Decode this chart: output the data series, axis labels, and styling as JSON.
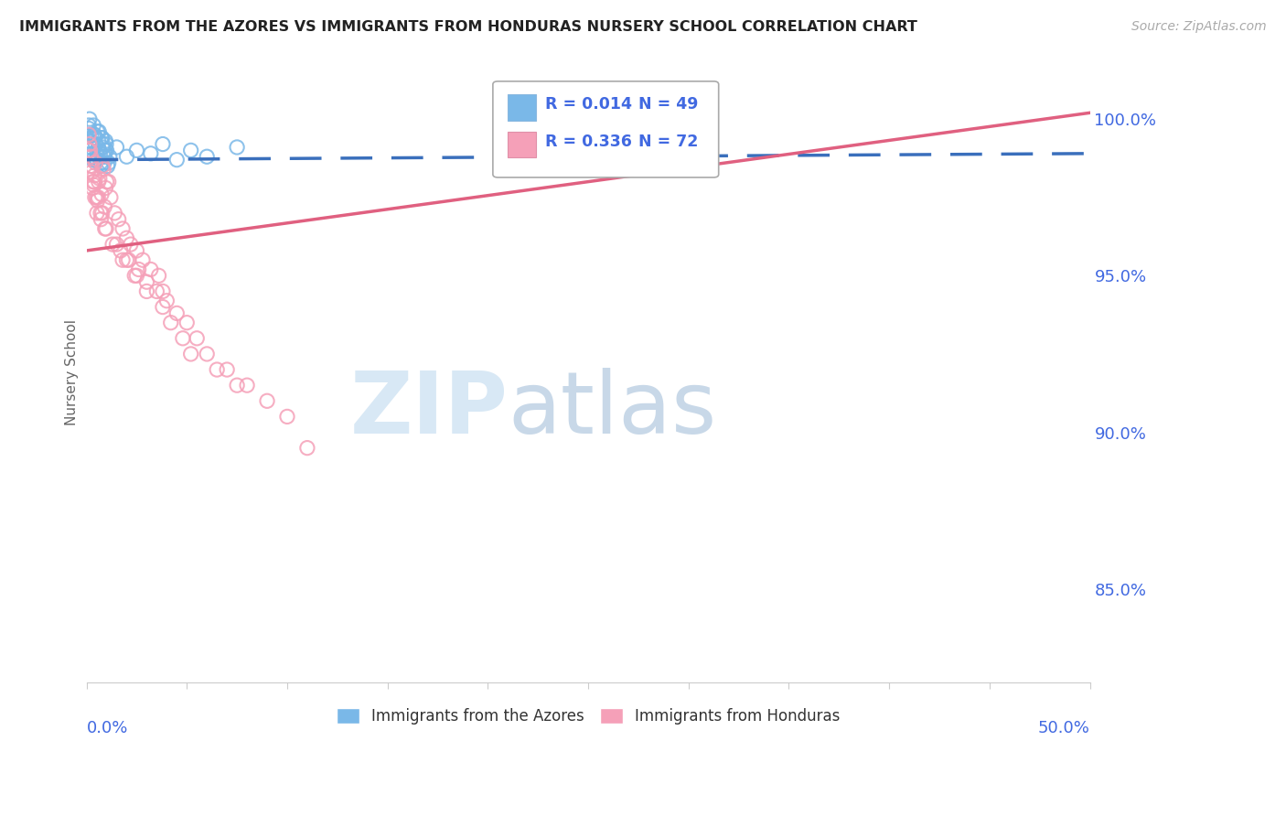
{
  "title": "IMMIGRANTS FROM THE AZORES VS IMMIGRANTS FROM HONDURAS NURSERY SCHOOL CORRELATION CHART",
  "source": "Source: ZipAtlas.com",
  "ylabel": "Nursery School",
  "ytick_values": [
    85.0,
    90.0,
    95.0,
    100.0
  ],
  "xlim": [
    0.0,
    50.0
  ],
  "ylim": [
    82.0,
    101.8
  ],
  "legend_r1": "R = 0.014",
  "legend_n1": "N = 49",
  "legend_r2": "R = 0.336",
  "legend_n2": "N = 72",
  "color_azores": "#7ab8e8",
  "color_honduras": "#f5a0b8",
  "color_azores_line": "#3a6fbc",
  "color_honduras_line": "#e06080",
  "color_axis_labels": "#4169e1",
  "color_title": "#222222",
  "color_source": "#aaaaaa",
  "color_grid": "#cccccc",
  "watermark_zip": "ZIP",
  "watermark_atlas": "atlas",
  "watermark_color_zip": "#d8e8f5",
  "watermark_color_atlas": "#c8d8e8",
  "azores_line_x": [
    0.0,
    50.0
  ],
  "azores_line_y": [
    98.7,
    98.9
  ],
  "honduras_line_x": [
    0.0,
    50.0
  ],
  "honduras_line_y": [
    95.8,
    100.2
  ],
  "azores_x": [
    0.15,
    0.25,
    0.35,
    0.45,
    0.55,
    0.65,
    0.75,
    0.85,
    0.95,
    1.05,
    0.1,
    0.2,
    0.3,
    0.4,
    0.5,
    0.6,
    0.7,
    0.8,
    0.9,
    1.0,
    0.12,
    0.22,
    0.32,
    0.42,
    0.52,
    0.62,
    0.72,
    0.82,
    0.92,
    1.1,
    0.18,
    0.28,
    0.38,
    0.48,
    0.58,
    0.68,
    0.78,
    0.88,
    0.98,
    1.15,
    1.5,
    2.0,
    2.5,
    3.2,
    3.8,
    4.5,
    5.2,
    6.0,
    7.5
  ],
  "azores_y": [
    100.0,
    99.5,
    99.8,
    99.2,
    99.6,
    99.0,
    99.4,
    98.8,
    99.3,
    98.5,
    99.7,
    99.1,
    98.9,
    99.5,
    98.7,
    99.3,
    98.6,
    99.1,
    98.8,
    99.0,
    99.8,
    99.2,
    98.7,
    99.4,
    98.9,
    99.6,
    98.5,
    99.2,
    99.0,
    98.6,
    99.3,
    98.8,
    99.5,
    98.7,
    99.1,
    98.9,
    99.4,
    98.6,
    99.2,
    98.8,
    99.1,
    98.8,
    99.0,
    98.9,
    99.2,
    98.7,
    99.0,
    98.8,
    99.1
  ],
  "honduras_x": [
    0.1,
    0.2,
    0.3,
    0.4,
    0.5,
    0.6,
    0.7,
    0.8,
    0.9,
    1.0,
    0.15,
    0.25,
    0.35,
    0.45,
    0.55,
    0.65,
    0.75,
    0.85,
    0.95,
    1.1,
    1.2,
    1.4,
    1.6,
    1.8,
    2.0,
    2.2,
    2.5,
    2.8,
    3.2,
    3.6,
    0.12,
    0.22,
    0.32,
    0.42,
    0.52,
    0.72,
    0.92,
    1.3,
    1.7,
    2.1,
    2.6,
    3.0,
    3.5,
    4.0,
    4.5,
    5.0,
    5.5,
    6.0,
    7.0,
    8.0,
    0.18,
    0.28,
    0.38,
    0.58,
    0.78,
    0.98,
    1.5,
    2.0,
    2.5,
    3.8,
    1.8,
    2.4,
    3.0,
    3.8,
    4.2,
    4.8,
    5.2,
    6.5,
    7.5,
    9.0,
    10.0,
    11.0
  ],
  "honduras_y": [
    99.0,
    98.5,
    97.8,
    98.2,
    97.5,
    98.0,
    97.0,
    98.5,
    97.2,
    98.0,
    99.2,
    98.3,
    97.9,
    98.6,
    97.4,
    98.1,
    97.6,
    98.4,
    97.8,
    98.0,
    97.5,
    97.0,
    96.8,
    96.5,
    96.2,
    96.0,
    95.8,
    95.5,
    95.2,
    95.0,
    99.5,
    98.8,
    98.0,
    97.5,
    97.0,
    96.8,
    96.5,
    96.0,
    95.8,
    95.5,
    95.2,
    94.8,
    94.5,
    94.2,
    93.8,
    93.5,
    93.0,
    92.5,
    92.0,
    91.5,
    99.0,
    98.5,
    98.0,
    97.5,
    97.0,
    96.5,
    96.0,
    95.5,
    95.0,
    94.5,
    95.5,
    95.0,
    94.5,
    94.0,
    93.5,
    93.0,
    92.5,
    92.0,
    91.5,
    91.0,
    90.5,
    89.5
  ]
}
